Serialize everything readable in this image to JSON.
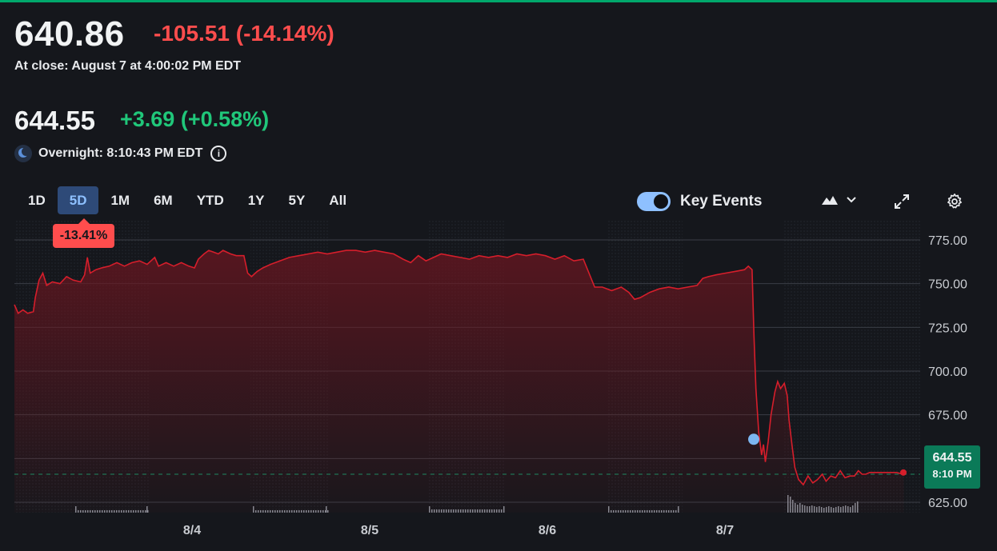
{
  "quote": {
    "close_price": "640.86",
    "close_change": "-105.51",
    "close_change_pct": "(-14.14%)",
    "close_label": "At close: August 7 at 4:00:02 PM EDT",
    "overnight_price": "644.55",
    "overnight_change": "+3.69",
    "overnight_change_pct": "(+0.58%)",
    "overnight_label": "Overnight: 8:10:43 PM EDT"
  },
  "ranges": [
    {
      "label": "1D",
      "active": false
    },
    {
      "label": "5D",
      "active": true
    },
    {
      "label": "1M",
      "active": false
    },
    {
      "label": "6M",
      "active": false
    },
    {
      "label": "YTD",
      "active": false
    },
    {
      "label": "1Y",
      "active": false
    },
    {
      "label": "5Y",
      "active": false
    },
    {
      "label": "All",
      "active": false
    }
  ],
  "controls": {
    "key_events_label": "Key Events",
    "key_events_on": true
  },
  "colors": {
    "negative": "#ff4d4d",
    "positive": "#20c77a",
    "line": "#d61e2b",
    "accent_green": "#0b7a58",
    "event_dot": "#7cb6f0"
  },
  "chart_data": {
    "type": "area",
    "period_change": "-13.41%",
    "x_ticks": [
      "8/4",
      "8/5",
      "8/6",
      "8/7"
    ],
    "y_ticks": [
      "775.00",
      "750.00",
      "725.00",
      "700.00",
      "675.00",
      "625.00"
    ],
    "ylim": [
      620,
      790
    ],
    "last_price": "644.55",
    "last_time": "8:10 PM",
    "reference_line": 641,
    "event_marker": {
      "date": "8/7",
      "value": 661
    },
    "series": [
      {
        "values": [
          [
            0,
            738
          ],
          [
            0.04,
            733
          ],
          [
            0.09,
            735
          ],
          [
            0.14,
            733
          ],
          [
            0.2,
            734
          ],
          [
            0.22,
            742
          ],
          [
            0.26,
            752
          ],
          [
            0.3,
            756
          ],
          [
            0.34,
            749
          ],
          [
            0.4,
            751
          ],
          [
            0.48,
            750
          ],
          [
            0.55,
            754
          ],
          [
            0.62,
            752
          ],
          [
            0.7,
            751
          ],
          [
            0.74,
            755
          ],
          [
            0.77,
            765
          ],
          [
            0.8,
            756
          ],
          [
            0.86,
            758
          ],
          [
            0.92,
            759
          ],
          [
            1,
            760
          ],
          [
            1.08,
            762
          ],
          [
            1.16,
            760
          ],
          [
            1.24,
            762
          ],
          [
            1.32,
            763
          ],
          [
            1.4,
            761
          ],
          [
            1.48,
            765
          ],
          [
            1.52,
            760
          ],
          [
            1.6,
            762
          ],
          [
            1.68,
            760
          ],
          [
            1.76,
            762
          ],
          [
            1.84,
            760
          ],
          [
            1.9,
            759
          ],
          [
            1.94,
            764
          ],
          [
            2.0,
            767
          ],
          [
            2.05,
            769
          ],
          [
            2.1,
            768
          ],
          [
            2.15,
            767
          ],
          [
            2.2,
            769
          ],
          [
            2.28,
            767
          ],
          [
            2.34,
            766
          ],
          [
            2.42,
            766
          ],
          [
            2.46,
            756
          ],
          [
            2.5,
            754
          ],
          [
            2.56,
            757
          ],
          [
            2.62,
            759
          ],
          [
            2.7,
            761
          ],
          [
            2.8,
            763
          ],
          [
            2.9,
            765
          ],
          [
            3.0,
            766
          ],
          [
            3.1,
            767
          ],
          [
            3.2,
            768
          ],
          [
            3.3,
            767
          ],
          [
            3.4,
            768
          ],
          [
            3.5,
            769
          ],
          [
            3.6,
            769
          ],
          [
            3.7,
            768
          ],
          [
            3.8,
            769
          ],
          [
            3.9,
            768
          ],
          [
            4.0,
            767
          ],
          [
            4.1,
            764
          ],
          [
            4.18,
            762
          ],
          [
            4.26,
            766
          ],
          [
            4.34,
            763
          ],
          [
            4.42,
            765
          ],
          [
            4.5,
            767
          ],
          [
            4.6,
            766
          ],
          [
            4.7,
            765
          ],
          [
            4.8,
            764
          ],
          [
            4.9,
            766
          ],
          [
            5.0,
            765
          ],
          [
            5.1,
            766
          ],
          [
            5.2,
            765
          ],
          [
            5.3,
            767
          ],
          [
            5.4,
            766
          ],
          [
            5.5,
            767
          ],
          [
            5.6,
            766
          ],
          [
            5.7,
            764
          ],
          [
            5.8,
            766
          ],
          [
            5.9,
            763
          ],
          [
            6.0,
            764
          ],
          [
            6.06,
            756
          ],
          [
            6.12,
            748
          ],
          [
            6.2,
            748
          ],
          [
            6.3,
            746
          ],
          [
            6.4,
            748
          ],
          [
            6.48,
            745
          ],
          [
            6.54,
            741
          ],
          [
            6.6,
            742
          ],
          [
            6.7,
            745
          ],
          [
            6.8,
            747
          ],
          [
            6.9,
            748
          ],
          [
            7.0,
            747
          ],
          [
            7.1,
            748
          ],
          [
            7.2,
            749
          ],
          [
            7.26,
            753
          ],
          [
            7.32,
            754
          ],
          [
            7.4,
            755
          ],
          [
            7.5,
            756
          ],
          [
            7.6,
            757
          ],
          [
            7.7,
            758
          ],
          [
            7.74,
            760
          ],
          [
            7.78,
            758
          ],
          [
            7.8,
            720
          ],
          [
            7.82,
            690
          ],
          [
            7.85,
            665
          ],
          [
            7.88,
            652
          ],
          [
            7.9,
            658
          ],
          [
            7.92,
            648
          ],
          [
            7.95,
            660
          ],
          [
            7.98,
            675
          ],
          [
            8.02,
            688
          ],
          [
            8.05,
            694
          ],
          [
            8.08,
            690
          ],
          [
            8.12,
            693
          ],
          [
            8.15,
            686
          ],
          [
            8.17,
            672
          ],
          [
            8.2,
            658
          ],
          [
            8.23,
            645
          ],
          [
            8.27,
            638
          ],
          [
            8.32,
            635
          ],
          [
            8.37,
            640
          ],
          [
            8.42,
            636
          ],
          [
            8.47,
            638
          ],
          [
            8.52,
            641
          ],
          [
            8.56,
            637
          ],
          [
            8.61,
            640
          ],
          [
            8.66,
            639
          ],
          [
            8.71,
            643
          ],
          [
            8.76,
            639
          ],
          [
            8.81,
            640
          ],
          [
            8.86,
            640
          ],
          [
            8.9,
            643
          ],
          [
            8.94,
            641
          ],
          [
            8.98,
            641
          ],
          [
            9.02,
            642
          ],
          [
            9.1,
            642
          ],
          [
            9.2,
            642
          ],
          [
            9.3,
            642
          ],
          [
            9.38,
            641
          ]
        ]
      }
    ]
  }
}
